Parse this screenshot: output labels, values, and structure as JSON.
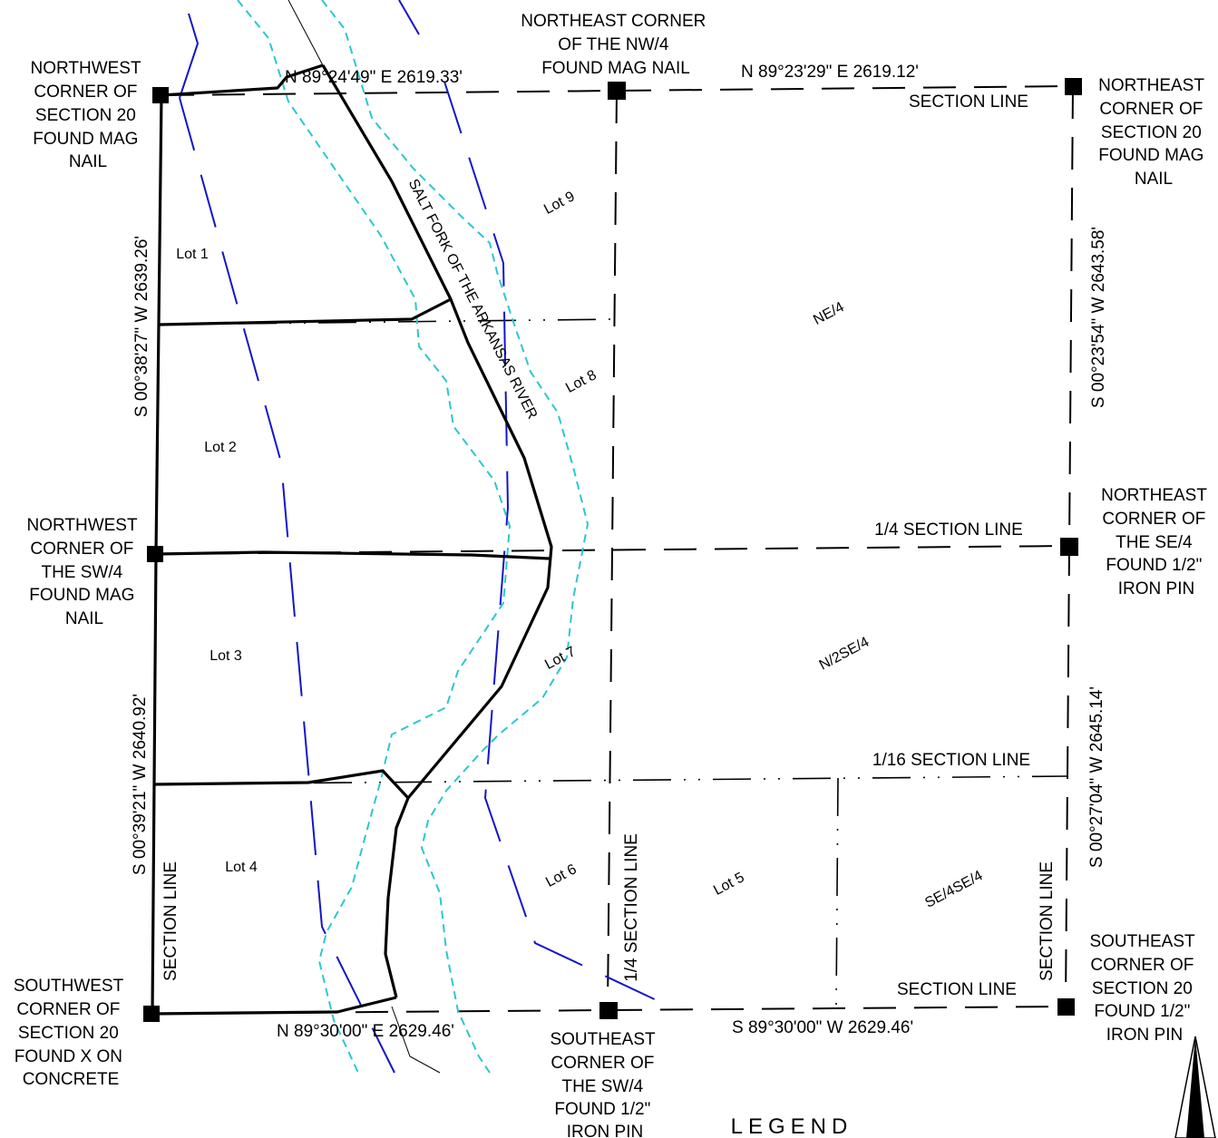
{
  "corners": {
    "nw_section": [
      "NORTHWEST",
      "CORNER OF",
      "SECTION 20",
      "FOUND MAG",
      "NAIL"
    ],
    "ne_nw4": [
      "NORTHEAST CORNER",
      "OF THE NW/4",
      "FOUND MAG NAIL"
    ],
    "ne_section": [
      "NORTHEAST",
      "CORNER OF",
      "SECTION 20",
      "FOUND MAG",
      "NAIL"
    ],
    "nw_sw4": [
      "NORTHWEST",
      "CORNER OF",
      "THE SW/4",
      "FOUND MAG",
      "NAIL"
    ],
    "ne_se4": [
      "NORTHEAST",
      "CORNER OF",
      "THE SE/4",
      "FOUND 1/2\"",
      "IRON PIN"
    ],
    "sw_section": [
      "SOUTHWEST",
      "CORNER OF",
      "SECTION 20",
      "FOUND X ON",
      "CONCRETE"
    ],
    "se_sw4": [
      "SOUTHEAST",
      "CORNER OF",
      "THE SW/4",
      "FOUND 1/2\"",
      "IRON PIN"
    ],
    "se_section": [
      "SOUTHEAST",
      "CORNER OF",
      "SECTION 20",
      "FOUND 1/2\"",
      "IRON PIN"
    ]
  },
  "bearings": {
    "north_west": "N 89°24'49\" E  2619.33'",
    "north_east": "N 89°23'29\" E  2619.12'",
    "west_upper": "S 00°38'27\" W  2639.26'",
    "west_lower": "S 00°39'21\" W  2640.92'",
    "east_upper": "S 00°23'54\" W  2643.58'",
    "east_lower": "S 00°27'04\" W  2645.14'",
    "south_west": "N 89°30'00\" E  2629.46'",
    "south_east": "S 89°30'00\" W  2629.46'"
  },
  "lines": {
    "section_line": "SECTION LINE",
    "quarter_section_line": "1/4 SECTION LINE",
    "sixteenth_section_line": "1/16 SECTION LINE"
  },
  "lots": [
    "Lot 1",
    "Lot 2",
    "Lot 3",
    "Lot 4",
    "Lot 5",
    "Lot 6",
    "Lot 7",
    "Lot 8",
    "Lot 9"
  ],
  "tracts": {
    "ne4": "NE/4",
    "n2se4": "N/2SE/4",
    "se4se4": "SE/4SE/4"
  },
  "river": "SALT FORK OF THE ARKANSAS RIVER",
  "legend_title": "LEGEND",
  "colors": {
    "boundary": "#000000",
    "river_bank": "#2bc7cf",
    "blue_line": "#1414cc"
  }
}
